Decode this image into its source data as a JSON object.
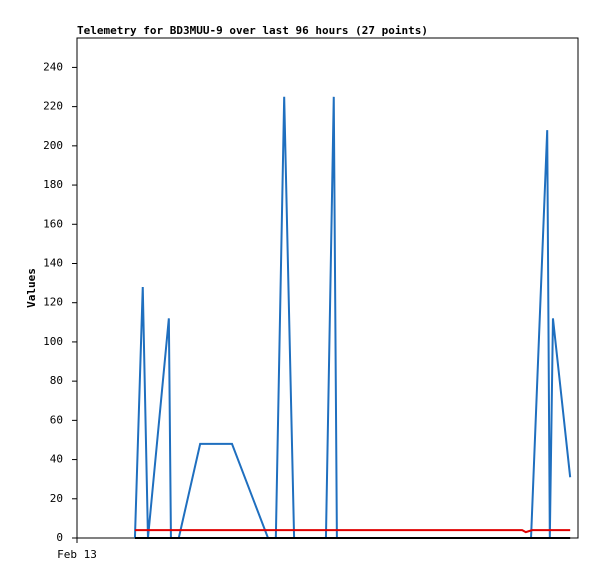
{
  "chart_data": {
    "type": "line",
    "title": "Telemetry for BD3MUU-9 over last 96 hours (27 points)",
    "y_label": "Values",
    "xlim": [
      0,
      96
    ],
    "xticks": [
      {
        "value": 0,
        "label": "Feb 13"
      }
    ],
    "ylim": [
      0,
      255
    ],
    "yticks": [
      0,
      20,
      40,
      60,
      80,
      100,
      120,
      140,
      160,
      180,
      200,
      220,
      240
    ],
    "grid": false,
    "series": [
      {
        "color": "#1f6fbf",
        "x": [
          11.1,
          12.6,
          13.6,
          17.6,
          18.0,
          19.5,
          23.6,
          29.7,
          36.6,
          38.1,
          39.7,
          41.6,
          47.7,
          49.2,
          49.8,
          87.0,
          90.1,
          90.6,
          91.2,
          94.5
        ],
        "values": [
          0,
          128,
          0,
          112,
          0,
          0,
          48,
          48,
          0,
          0,
          225,
          0,
          0,
          225,
          0,
          0,
          208,
          0,
          112,
          31
        ]
      },
      {
        "color": "#e00000",
        "x": [
          11.1,
          85.3,
          86.0,
          87.2,
          94.5
        ],
        "values": [
          4,
          4,
          3,
          4,
          4
        ]
      },
      {
        "color": "#000000",
        "x": [
          11.1,
          94.5
        ],
        "values": [
          0,
          0
        ]
      }
    ]
  }
}
